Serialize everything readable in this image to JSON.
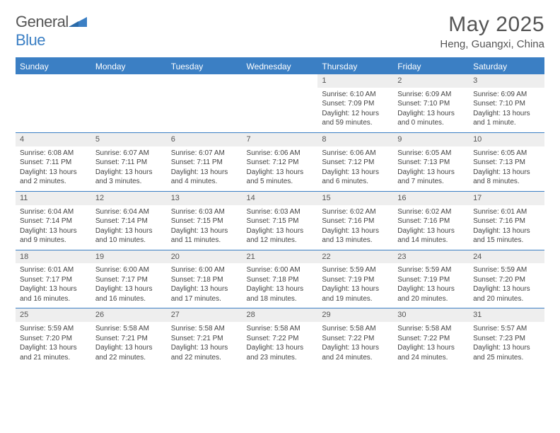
{
  "brand": {
    "name_part1": "General",
    "name_part2": "Blue"
  },
  "title": "May 2025",
  "location": "Heng, Guangxi, China",
  "colors": {
    "accent": "#3b7fc4",
    "header_bg": "#3b7fc4",
    "band": "#eeeeee",
    "text": "#444444"
  },
  "weekdays": [
    "Sunday",
    "Monday",
    "Tuesday",
    "Wednesday",
    "Thursday",
    "Friday",
    "Saturday"
  ],
  "weeks": [
    [
      {
        "n": "",
        "lines": []
      },
      {
        "n": "",
        "lines": []
      },
      {
        "n": "",
        "lines": []
      },
      {
        "n": "",
        "lines": []
      },
      {
        "n": "1",
        "lines": [
          "Sunrise: 6:10 AM",
          "Sunset: 7:09 PM",
          "Daylight: 12 hours and 59 minutes."
        ]
      },
      {
        "n": "2",
        "lines": [
          "Sunrise: 6:09 AM",
          "Sunset: 7:10 PM",
          "Daylight: 13 hours and 0 minutes."
        ]
      },
      {
        "n": "3",
        "lines": [
          "Sunrise: 6:09 AM",
          "Sunset: 7:10 PM",
          "Daylight: 13 hours and 1 minute."
        ]
      }
    ],
    [
      {
        "n": "4",
        "lines": [
          "Sunrise: 6:08 AM",
          "Sunset: 7:11 PM",
          "Daylight: 13 hours and 2 minutes."
        ]
      },
      {
        "n": "5",
        "lines": [
          "Sunrise: 6:07 AM",
          "Sunset: 7:11 PM",
          "Daylight: 13 hours and 3 minutes."
        ]
      },
      {
        "n": "6",
        "lines": [
          "Sunrise: 6:07 AM",
          "Sunset: 7:11 PM",
          "Daylight: 13 hours and 4 minutes."
        ]
      },
      {
        "n": "7",
        "lines": [
          "Sunrise: 6:06 AM",
          "Sunset: 7:12 PM",
          "Daylight: 13 hours and 5 minutes."
        ]
      },
      {
        "n": "8",
        "lines": [
          "Sunrise: 6:06 AM",
          "Sunset: 7:12 PM",
          "Daylight: 13 hours and 6 minutes."
        ]
      },
      {
        "n": "9",
        "lines": [
          "Sunrise: 6:05 AM",
          "Sunset: 7:13 PM",
          "Daylight: 13 hours and 7 minutes."
        ]
      },
      {
        "n": "10",
        "lines": [
          "Sunrise: 6:05 AM",
          "Sunset: 7:13 PM",
          "Daylight: 13 hours and 8 minutes."
        ]
      }
    ],
    [
      {
        "n": "11",
        "lines": [
          "Sunrise: 6:04 AM",
          "Sunset: 7:14 PM",
          "Daylight: 13 hours and 9 minutes."
        ]
      },
      {
        "n": "12",
        "lines": [
          "Sunrise: 6:04 AM",
          "Sunset: 7:14 PM",
          "Daylight: 13 hours and 10 minutes."
        ]
      },
      {
        "n": "13",
        "lines": [
          "Sunrise: 6:03 AM",
          "Sunset: 7:15 PM",
          "Daylight: 13 hours and 11 minutes."
        ]
      },
      {
        "n": "14",
        "lines": [
          "Sunrise: 6:03 AM",
          "Sunset: 7:15 PM",
          "Daylight: 13 hours and 12 minutes."
        ]
      },
      {
        "n": "15",
        "lines": [
          "Sunrise: 6:02 AM",
          "Sunset: 7:16 PM",
          "Daylight: 13 hours and 13 minutes."
        ]
      },
      {
        "n": "16",
        "lines": [
          "Sunrise: 6:02 AM",
          "Sunset: 7:16 PM",
          "Daylight: 13 hours and 14 minutes."
        ]
      },
      {
        "n": "17",
        "lines": [
          "Sunrise: 6:01 AM",
          "Sunset: 7:16 PM",
          "Daylight: 13 hours and 15 minutes."
        ]
      }
    ],
    [
      {
        "n": "18",
        "lines": [
          "Sunrise: 6:01 AM",
          "Sunset: 7:17 PM",
          "Daylight: 13 hours and 16 minutes."
        ]
      },
      {
        "n": "19",
        "lines": [
          "Sunrise: 6:00 AM",
          "Sunset: 7:17 PM",
          "Daylight: 13 hours and 16 minutes."
        ]
      },
      {
        "n": "20",
        "lines": [
          "Sunrise: 6:00 AM",
          "Sunset: 7:18 PM",
          "Daylight: 13 hours and 17 minutes."
        ]
      },
      {
        "n": "21",
        "lines": [
          "Sunrise: 6:00 AM",
          "Sunset: 7:18 PM",
          "Daylight: 13 hours and 18 minutes."
        ]
      },
      {
        "n": "22",
        "lines": [
          "Sunrise: 5:59 AM",
          "Sunset: 7:19 PM",
          "Daylight: 13 hours and 19 minutes."
        ]
      },
      {
        "n": "23",
        "lines": [
          "Sunrise: 5:59 AM",
          "Sunset: 7:19 PM",
          "Daylight: 13 hours and 20 minutes."
        ]
      },
      {
        "n": "24",
        "lines": [
          "Sunrise: 5:59 AM",
          "Sunset: 7:20 PM",
          "Daylight: 13 hours and 20 minutes."
        ]
      }
    ],
    [
      {
        "n": "25",
        "lines": [
          "Sunrise: 5:59 AM",
          "Sunset: 7:20 PM",
          "Daylight: 13 hours and 21 minutes."
        ]
      },
      {
        "n": "26",
        "lines": [
          "Sunrise: 5:58 AM",
          "Sunset: 7:21 PM",
          "Daylight: 13 hours and 22 minutes."
        ]
      },
      {
        "n": "27",
        "lines": [
          "Sunrise: 5:58 AM",
          "Sunset: 7:21 PM",
          "Daylight: 13 hours and 22 minutes."
        ]
      },
      {
        "n": "28",
        "lines": [
          "Sunrise: 5:58 AM",
          "Sunset: 7:22 PM",
          "Daylight: 13 hours and 23 minutes."
        ]
      },
      {
        "n": "29",
        "lines": [
          "Sunrise: 5:58 AM",
          "Sunset: 7:22 PM",
          "Daylight: 13 hours and 24 minutes."
        ]
      },
      {
        "n": "30",
        "lines": [
          "Sunrise: 5:58 AM",
          "Sunset: 7:22 PM",
          "Daylight: 13 hours and 24 minutes."
        ]
      },
      {
        "n": "31",
        "lines": [
          "Sunrise: 5:57 AM",
          "Sunset: 7:23 PM",
          "Daylight: 13 hours and 25 minutes."
        ]
      }
    ]
  ]
}
